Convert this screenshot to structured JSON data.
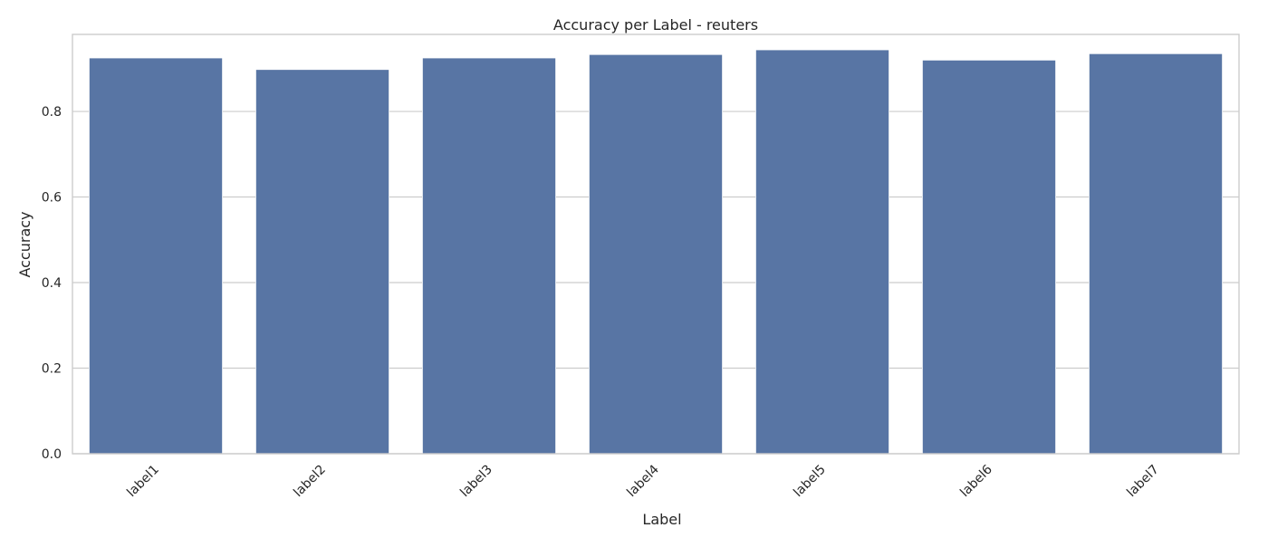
{
  "chart_data": {
    "type": "bar",
    "title": "Accuracy per Label - reuters",
    "xlabel": "Label",
    "ylabel": "Accuracy",
    "categories": [
      "label1",
      "label2",
      "label3",
      "label4",
      "label5",
      "label6",
      "label7"
    ],
    "values": [
      0.925,
      0.898,
      0.925,
      0.933,
      0.944,
      0.92,
      0.935
    ],
    "ylim": [
      0,
      0.98
    ],
    "yticks": [
      0.0,
      0.2,
      0.4,
      0.6,
      0.8
    ],
    "ytick_labels": [
      "0.0",
      "0.2",
      "0.4",
      "0.6",
      "0.8"
    ],
    "grid": true,
    "bar_color": "#5875a4",
    "xtick_rotation": 45
  }
}
